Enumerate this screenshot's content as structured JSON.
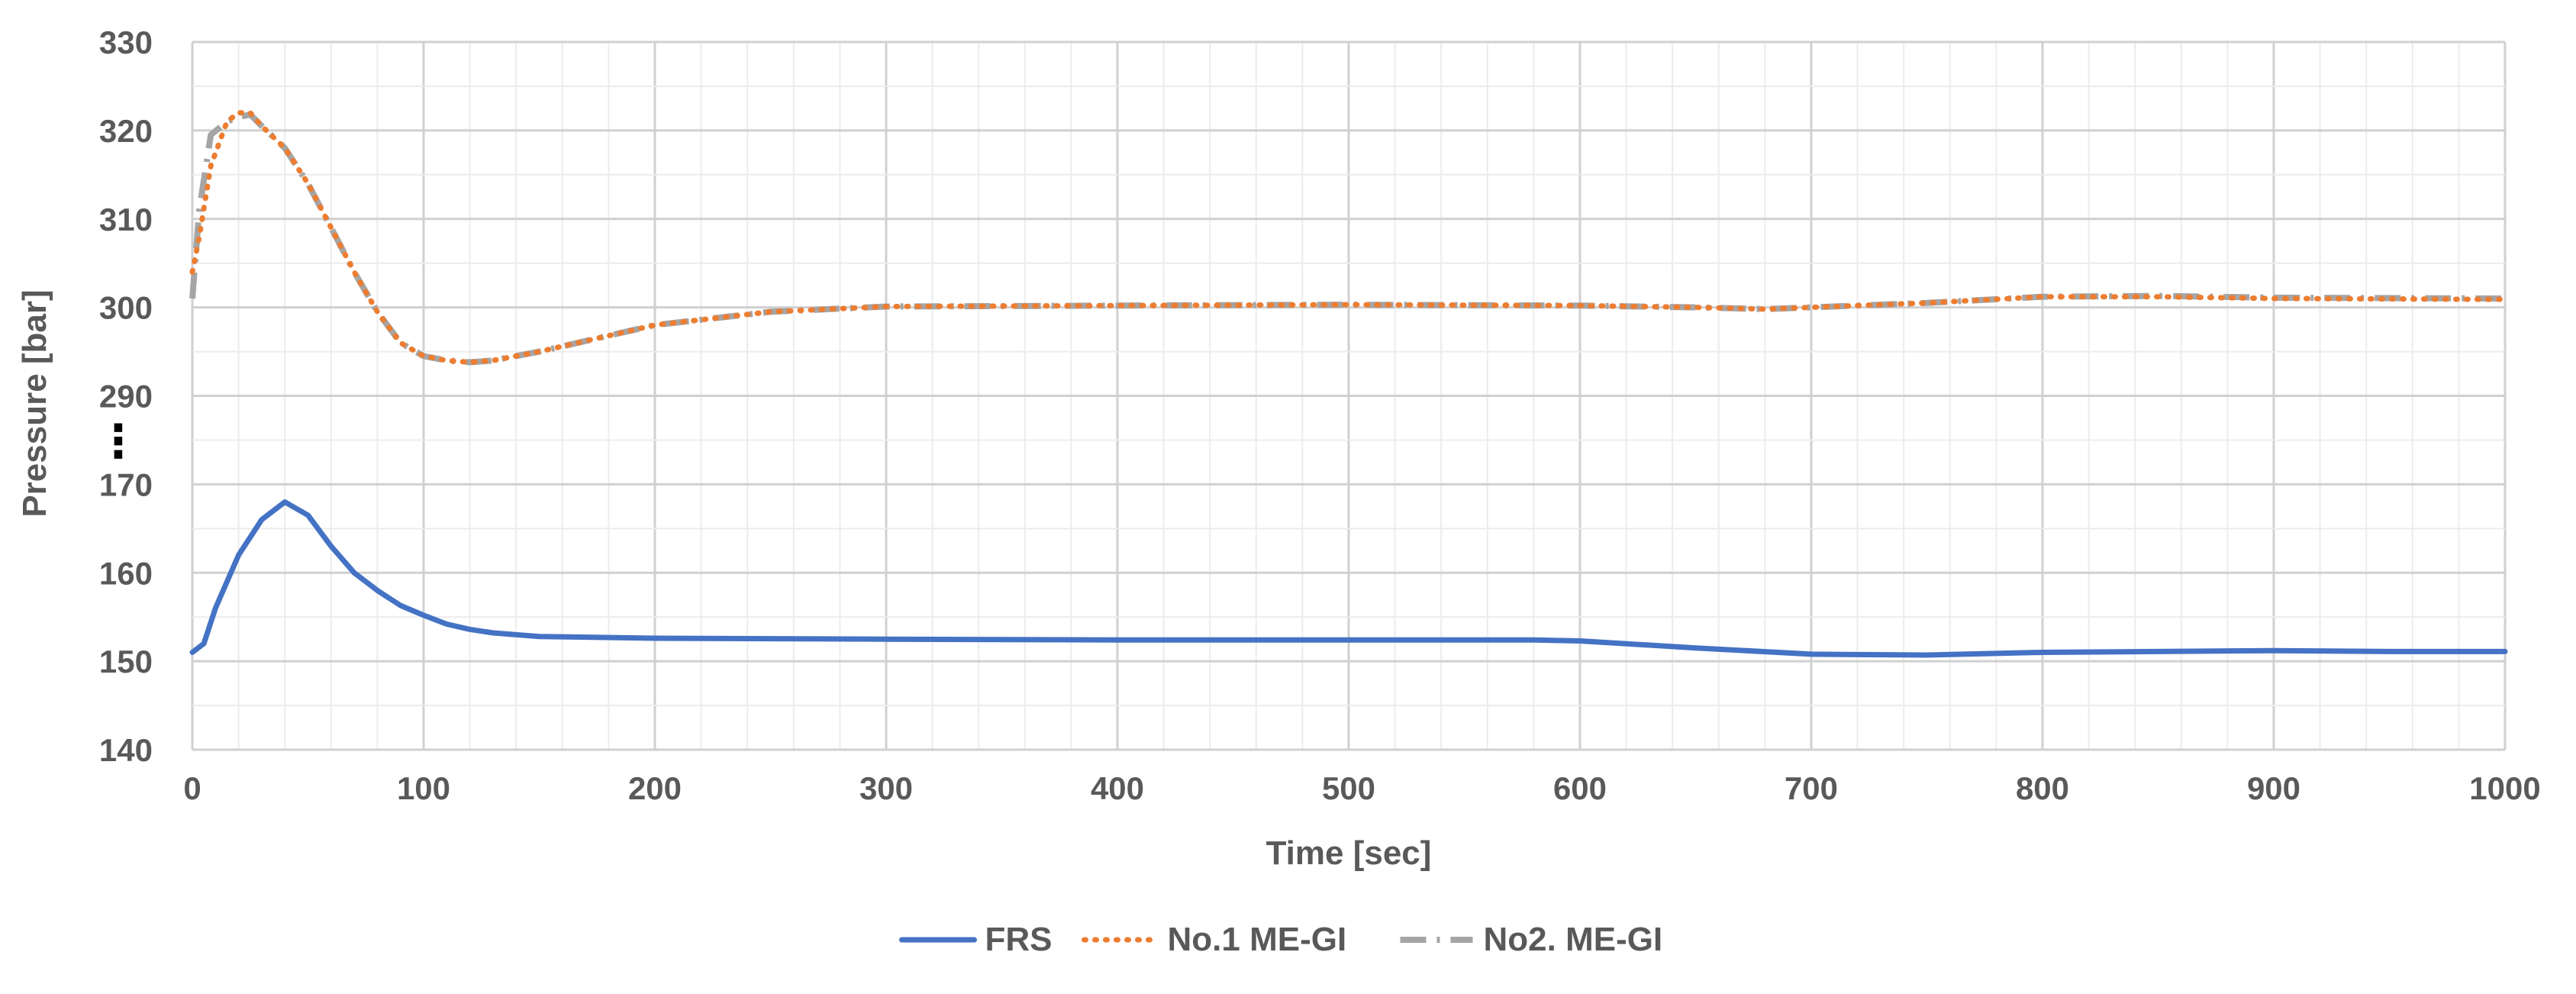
{
  "chart_data": {
    "type": "line",
    "xlabel": "Time [sec]",
    "ylabel": "Pressure [bar]",
    "xlim": [
      0,
      1000
    ],
    "x_ticks": [
      "0",
      "100",
      "200",
      "300",
      "400",
      "500",
      "600",
      "700",
      "800",
      "900",
      "1000"
    ],
    "y_ticks": [
      "330",
      "320",
      "310",
      "300",
      "290",
      "170",
      "160",
      "150",
      "140"
    ],
    "y_axis_break": {
      "between": [
        170,
        290
      ],
      "marker": "⋮"
    },
    "ylim_upper": [
      290,
      330
    ],
    "ylim_lower": [
      140,
      170
    ],
    "grid": true,
    "legend_position": "bottom",
    "series": [
      {
        "name": "FRS",
        "color": "#4472C4",
        "style": "solid",
        "x": [
          0,
          5,
          10,
          20,
          30,
          40,
          50,
          60,
          70,
          80,
          90,
          100,
          110,
          120,
          130,
          150,
          200,
          300,
          400,
          500,
          580,
          600,
          650,
          700,
          750,
          800,
          850,
          900,
          950,
          1000
        ],
        "y": [
          151,
          152,
          156,
          162,
          166,
          168,
          166.5,
          163,
          160,
          158,
          156.3,
          155.2,
          154.2,
          153.6,
          153.2,
          152.8,
          152.6,
          152.5,
          152.4,
          152.4,
          152.4,
          152.3,
          151.5,
          150.8,
          150.7,
          151,
          151.1,
          151.2,
          151.1,
          151.1
        ]
      },
      {
        "name": "No.1 ME-GI",
        "color": "#ED7D31",
        "style": "dotted",
        "x": [
          0,
          3,
          8,
          15,
          20,
          25,
          30,
          40,
          50,
          60,
          70,
          80,
          90,
          100,
          110,
          120,
          130,
          150,
          175,
          200,
          250,
          300,
          400,
          500,
          600,
          650,
          680,
          700,
          750,
          800,
          850,
          900,
          1000
        ],
        "y": [
          304,
          308,
          316,
          321,
          322,
          322,
          320.5,
          318,
          314,
          309,
          304,
          299.5,
          296,
          294.5,
          294,
          293.8,
          294,
          295,
          296.5,
          298,
          299.5,
          300.1,
          300.2,
          300.3,
          300.2,
          300,
          299.8,
          300,
          300.5,
          301.2,
          301.2,
          301,
          300.9
        ]
      },
      {
        "name": "No2. ME-GI",
        "color": "#A5A5A5",
        "style": "dashdot",
        "x": [
          0,
          3,
          8,
          15,
          20,
          25,
          30,
          40,
          50,
          60,
          70,
          80,
          90,
          100,
          110,
          120,
          130,
          150,
          175,
          200,
          250,
          300,
          400,
          500,
          600,
          650,
          680,
          700,
          750,
          800,
          850,
          900,
          1000
        ],
        "y": [
          301,
          311,
          319.5,
          321,
          321.5,
          321.8,
          320.5,
          318,
          314,
          309,
          304,
          299.5,
          296,
          294.5,
          294,
          293.8,
          294,
          295,
          296.5,
          298,
          299.5,
          300.1,
          300.2,
          300.3,
          300.2,
          300,
          299.8,
          300,
          300.5,
          301.2,
          301.3,
          301.1,
          301
        ]
      }
    ]
  }
}
